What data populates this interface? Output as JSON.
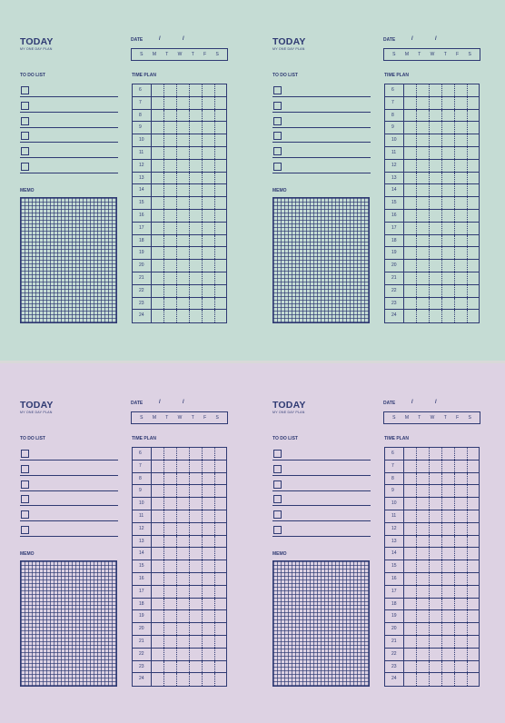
{
  "pages": [
    {
      "title": "TODAY",
      "subtitle": "MY ONE DAY PLAN",
      "date_label": "DATE",
      "days": [
        "S",
        "M",
        "T",
        "W",
        "T",
        "F",
        "S"
      ],
      "todo_label": "TO DO LIST",
      "memo_label": "MEMO",
      "timeplan_label": "TIME PLAN",
      "hours": [
        "6",
        "7",
        "8",
        "9",
        "10",
        "11",
        "12",
        "13",
        "14",
        "15",
        "16",
        "17",
        "18",
        "19",
        "20",
        "21",
        "22",
        "23",
        "24"
      ]
    },
    {
      "title": "TODAY",
      "subtitle": "MY ONE DAY PLAN",
      "date_label": "DATE",
      "days": [
        "S",
        "M",
        "T",
        "W",
        "T",
        "F",
        "S"
      ],
      "todo_label": "TO DO LIST",
      "memo_label": "MEMO",
      "timeplan_label": "TIME PLAN",
      "hours": [
        "6",
        "7",
        "8",
        "9",
        "10",
        "11",
        "12",
        "13",
        "14",
        "15",
        "16",
        "17",
        "18",
        "19",
        "20",
        "21",
        "22",
        "23",
        "24"
      ]
    },
    {
      "title": "TODAY",
      "subtitle": "MY ONE DAY PLAN",
      "date_label": "DATE",
      "days": [
        "S",
        "M",
        "T",
        "W",
        "T",
        "F",
        "S"
      ],
      "todo_label": "TO DO LIST",
      "memo_label": "MEMO",
      "timeplan_label": "TIME PLAN",
      "hours": [
        "6",
        "7",
        "8",
        "9",
        "10",
        "11",
        "12",
        "13",
        "14",
        "15",
        "16",
        "17",
        "18",
        "19",
        "20",
        "21",
        "22",
        "23",
        "24"
      ]
    },
    {
      "title": "TODAY",
      "subtitle": "MY ONE DAY PLAN",
      "date_label": "DATE",
      "days": [
        "S",
        "M",
        "T",
        "W",
        "T",
        "F",
        "S"
      ],
      "todo_label": "TO DO LIST",
      "memo_label": "MEMO",
      "timeplan_label": "TIME PLAN",
      "hours": [
        "6",
        "7",
        "8",
        "9",
        "10",
        "11",
        "12",
        "13",
        "14",
        "15",
        "16",
        "17",
        "18",
        "19",
        "20",
        "21",
        "22",
        "23",
        "24"
      ]
    }
  ],
  "date_separator": "/",
  "colors": {
    "ink": "#2f3a73",
    "top_background": "#c5dcd4",
    "bottom_background": "#ddd2e3"
  },
  "todo_items": 6
}
